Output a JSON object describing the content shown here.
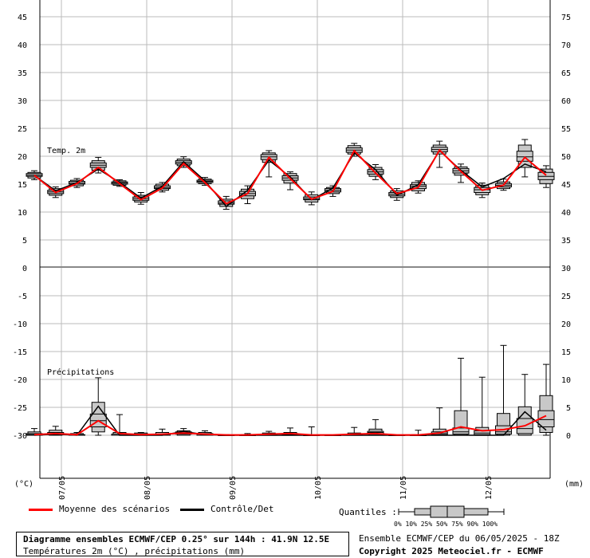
{
  "colors": {
    "mean": "#ff0000",
    "control": "#000000",
    "grid": "#bbbbbb",
    "box_fill": "#c8c8c8",
    "separator": "#888888"
  },
  "legend": {
    "mean_label": "Moyenne des scénarios",
    "control_label": "Contrôle/Det",
    "quantiles_label": "Quantiles :",
    "quantiles_scale": "0%  10% 25% 50% 75% 90% 100%"
  },
  "footer": {
    "title": "Diagramme ensembles ECMWF/CEP 0.25° sur 144h : 41.9N 12.5E",
    "subtitle": "Températures 2m (°C) , précipitations (mm)",
    "run_info": "Ensemble ECMWF/CEP du 06/05/2025 - 18Z",
    "copyright": "Copyright 2025 Meteociel.fr - ECMWF"
  },
  "chart_data": {
    "type": "line",
    "dates": [
      "07/05",
      "08/05",
      "09/05",
      "10/05",
      "11/05",
      "12/05"
    ],
    "unit_left": "(°C)",
    "unit_right": "(mm)",
    "left_axis_ticks": [
      "45",
      "40",
      "35",
      "30",
      "25",
      "20",
      "15",
      "10",
      "5",
      "0",
      "-5",
      "-10",
      "-15",
      "-20",
      "-25",
      "-30"
    ],
    "right_axis_ticks": [
      "75",
      "70",
      "65",
      "60",
      "55",
      "50",
      "45",
      "40",
      "35",
      "30",
      "25",
      "20",
      "15",
      "10",
      "5",
      "0"
    ],
    "temperature": {
      "label": "Temp. 2m",
      "step_hours": 6,
      "mean": [
        16.6,
        13.5,
        15.1,
        18.0,
        15.1,
        12.2,
        14.3,
        18.7,
        15.3,
        11.5,
        13.3,
        19.8,
        16.0,
        12.3,
        13.7,
        21.0,
        17.0,
        13.3,
        14.4,
        21.1,
        17.3,
        13.9,
        14.8,
        19.8,
        16.6
      ],
      "control": [
        16.6,
        13.8,
        15.3,
        17.7,
        15.3,
        12.5,
        14.6,
        19.0,
        15.6,
        11.0,
        13.9,
        19.3,
        16.3,
        12.2,
        14.3,
        20.6,
        17.6,
        13.0,
        14.9,
        21.0,
        17.5,
        14.5,
        16.0,
        18.6,
        17.2
      ],
      "boxes": [
        [
          15.8,
          16.1,
          16.4,
          16.6,
          16.9,
          17.1,
          17.4
        ],
        [
          12.6,
          13.0,
          13.3,
          13.6,
          13.9,
          14.2,
          14.5
        ],
        [
          14.4,
          14.7,
          15.0,
          15.2,
          15.5,
          15.7,
          16.0
        ],
        [
          17.0,
          17.5,
          18.0,
          18.4,
          18.8,
          19.2,
          19.8
        ],
        [
          14.6,
          14.8,
          15.0,
          15.2,
          15.4,
          15.6,
          15.8
        ],
        [
          11.4,
          11.8,
          12.1,
          12.4,
          12.7,
          13.0,
          13.5
        ],
        [
          13.6,
          13.9,
          14.2,
          14.4,
          14.7,
          15.0,
          15.3
        ],
        [
          18.0,
          18.3,
          18.6,
          18.9,
          19.2,
          19.5,
          19.9
        ],
        [
          14.8,
          15.1,
          15.3,
          15.5,
          15.7,
          15.9,
          16.2
        ],
        [
          10.5,
          11.0,
          11.4,
          11.6,
          12.0,
          12.3,
          12.8
        ],
        [
          11.5,
          12.4,
          12.9,
          13.3,
          13.7,
          14.1,
          14.7
        ],
        [
          16.3,
          18.9,
          19.4,
          19.9,
          20.3,
          20.6,
          21.0
        ],
        [
          14.0,
          15.2,
          15.7,
          16.1,
          16.5,
          16.9,
          17.2
        ],
        [
          11.3,
          11.8,
          12.2,
          12.4,
          12.7,
          13.1,
          13.6
        ],
        [
          12.8,
          13.3,
          13.6,
          13.9,
          14.2,
          14.4,
          14.7
        ],
        [
          20.0,
          20.4,
          20.7,
          21.1,
          21.5,
          21.9,
          22.3
        ],
        [
          15.8,
          16.4,
          16.8,
          17.2,
          17.6,
          18.0,
          18.5
        ],
        [
          12.1,
          12.6,
          12.9,
          13.2,
          13.5,
          13.8,
          14.2
        ],
        [
          13.4,
          13.8,
          14.2,
          14.6,
          14.9,
          15.3,
          15.6
        ],
        [
          18.0,
          20.4,
          20.8,
          21.2,
          21.6,
          22.0,
          22.7
        ],
        [
          15.3,
          16.6,
          17.0,
          17.4,
          17.8,
          18.1,
          18.6
        ],
        [
          12.6,
          13.1,
          13.5,
          14.0,
          14.4,
          14.8,
          15.2
        ],
        [
          13.9,
          14.2,
          14.5,
          14.8,
          15.1,
          15.4,
          15.9
        ],
        [
          16.3,
          18.0,
          19.1,
          19.9,
          20.9,
          22.0,
          23.0
        ],
        [
          14.4,
          15.1,
          15.8,
          16.4,
          17.1,
          17.7,
          18.3
        ]
      ]
    },
    "precipitation": {
      "label": "Précipitations",
      "step_hours": 6,
      "mean": [
        0.1,
        0.3,
        0.1,
        2.6,
        0.3,
        0.1,
        0.2,
        0.4,
        0.2,
        0.05,
        0.05,
        0.2,
        0.3,
        0.05,
        0.05,
        0.2,
        0.3,
        0.05,
        0.05,
        0.4,
        1.5,
        0.8,
        1.0,
        1.7,
        3.5
      ],
      "control": [
        0,
        0.2,
        0,
        5.2,
        0,
        0,
        0,
        0.7,
        0.1,
        0,
        0,
        0,
        0,
        0,
        0,
        0,
        0,
        0,
        0,
        0,
        0,
        0,
        0,
        4.2,
        0.9
      ],
      "boxes": [
        [
          0,
          0,
          0,
          0.1,
          0.3,
          0.6,
          1.2
        ],
        [
          0,
          0,
          0.1,
          0.3,
          0.5,
          0.9,
          1.6
        ],
        [
          0,
          0,
          0,
          0,
          0.1,
          0.3,
          0.5
        ],
        [
          0,
          0.6,
          1.5,
          2.6,
          3.8,
          5.9,
          10.3
        ],
        [
          0,
          0,
          0,
          0,
          0.2,
          0.5,
          3.7
        ],
        [
          0,
          0,
          0,
          0,
          0.2,
          0.4,
          0.5
        ],
        [
          0,
          0,
          0,
          0,
          0.2,
          0.5,
          1.1
        ],
        [
          0,
          0,
          0.2,
          0.4,
          0.6,
          0.8,
          1.2
        ],
        [
          0,
          0,
          0,
          0.2,
          0.3,
          0.5,
          0.8
        ],
        [
          0,
          0,
          0,
          0,
          0,
          0,
          0.1
        ],
        [
          0,
          0,
          0,
          0,
          0,
          0.1,
          0.3
        ],
        [
          0,
          0,
          0,
          0.1,
          0.2,
          0.4,
          0.7
        ],
        [
          0,
          0,
          0,
          0.1,
          0.3,
          0.5,
          1.3
        ],
        [
          0,
          0,
          0,
          0,
          0,
          0,
          1.5
        ],
        [
          0,
          0,
          0,
          0,
          0,
          0,
          0
        ],
        [
          0,
          0,
          0,
          0.1,
          0.2,
          0.4,
          1.4
        ],
        [
          0,
          0,
          0.2,
          0.5,
          0.7,
          1.1,
          2.8
        ],
        [
          0,
          0,
          0,
          0,
          0,
          0,
          0
        ],
        [
          0,
          0,
          0,
          0,
          0,
          0.1,
          0.9
        ],
        [
          0,
          0,
          0.1,
          0.3,
          0.6,
          1.1,
          4.9
        ],
        [
          0,
          0,
          0.2,
          0.6,
          1.3,
          4.4,
          13.8
        ],
        [
          0,
          0,
          0.1,
          0.4,
          0.8,
          1.4,
          10.4
        ],
        [
          0,
          0,
          0.2,
          0.6,
          1.7,
          3.9,
          16.1
        ],
        [
          0,
          0,
          0.3,
          1.2,
          3.0,
          5.1,
          10.9
        ],
        [
          0,
          0.5,
          1.5,
          2.8,
          4.4,
          7.1,
          12.7
        ]
      ]
    }
  }
}
